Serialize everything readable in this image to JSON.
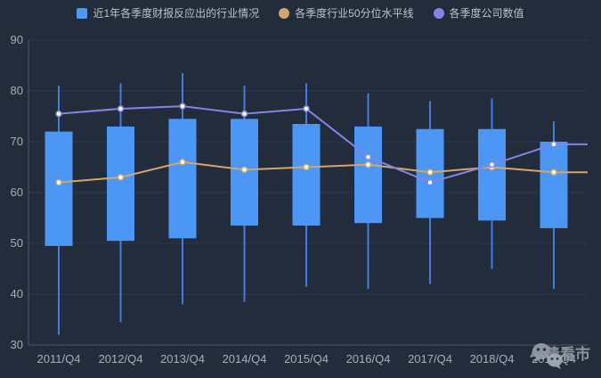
{
  "legend": {
    "items": [
      {
        "label": "近1年各季度财报反应出的行业情况",
        "marker": "square",
        "color": "#4C97F5"
      },
      {
        "label": "各季度行业50分位水平线",
        "marker": "circle",
        "color": "#D2A76A"
      },
      {
        "label": "各季度公司数值",
        "marker": "circle",
        "color": "#8285E8"
      }
    ]
  },
  "watermark": {
    "icon": "wechat-icon",
    "text": "小债看市"
  },
  "colors": {
    "background": "#232C3A",
    "box_fill": "#4C97F5",
    "whisker": "#3E7EE2",
    "percentile_line": "#D2A76A",
    "company_line": "#8285E8",
    "grid_line": "#2D3950",
    "axis_line": "#4A566C",
    "axis_text": "#A6AEBD",
    "marker_fill": "#FFFFFF"
  },
  "chart_data": {
    "type": "candlestick",
    "title": "",
    "xlabel": "",
    "ylabel": "",
    "categories": [
      "2011/Q4",
      "2012/Q4",
      "2013/Q4",
      "2014/Q4",
      "2015/Q4",
      "2016/Q4",
      "2017/Q4",
      "2018/Q4",
      "2019/Q4"
    ],
    "ylim": [
      30,
      90
    ],
    "y_ticks": [
      30,
      40,
      50,
      60,
      70,
      80,
      90
    ],
    "grid": true,
    "legend_position": "top",
    "lines_extend_to_right_edge": true,
    "series": [
      {
        "name": "近1年各季度财报反应出的行业情况",
        "type": "candlestick",
        "color": "#4C97F5",
        "values": [
          {
            "low": 32,
            "q1": 49.5,
            "q3": 72,
            "high": 81
          },
          {
            "low": 34.5,
            "q1": 50.5,
            "q3": 73,
            "high": 81.5
          },
          {
            "low": 38,
            "q1": 51,
            "q3": 74.5,
            "high": 83.5
          },
          {
            "low": 38.5,
            "q1": 53.5,
            "q3": 74.5,
            "high": 81
          },
          {
            "low": 41.5,
            "q1": 53.5,
            "q3": 73.5,
            "high": 81.5
          },
          {
            "low": 41,
            "q1": 54,
            "q3": 73,
            "high": 79.5
          },
          {
            "low": 42,
            "q1": 55,
            "q3": 72.5,
            "high": 78
          },
          {
            "low": 45,
            "q1": 54.5,
            "q3": 72.5,
            "high": 78.5
          },
          {
            "low": 41,
            "q1": 53,
            "q3": 70,
            "high": 74
          }
        ]
      },
      {
        "name": "各季度行业50分位水平线",
        "type": "line",
        "color": "#D2A76A",
        "values": [
          62,
          63,
          66,
          64.5,
          65,
          65.5,
          64,
          65,
          64
        ]
      },
      {
        "name": "各季度公司数值",
        "type": "line",
        "color": "#8285E8",
        "values": [
          75.5,
          76.5,
          77,
          75.5,
          76.5,
          67,
          62,
          65.5,
          69.5
        ]
      }
    ]
  }
}
